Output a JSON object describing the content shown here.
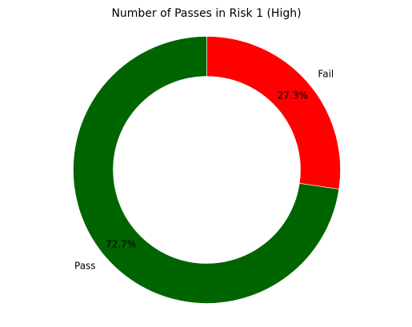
{
  "chart_data": {
    "type": "pie",
    "style": "donut",
    "title": "Number of Passes in Risk 1 (High)",
    "slices": [
      {
        "label": "Fail",
        "value": 27.3,
        "pct_label": "27.3%",
        "color": "#ff0000"
      },
      {
        "label": "Pass",
        "value": 72.7,
        "pct_label": "72.7%",
        "color": "#006400"
      }
    ],
    "start_angle_deg": 90,
    "direction": "clockwise",
    "legend": "none"
  }
}
